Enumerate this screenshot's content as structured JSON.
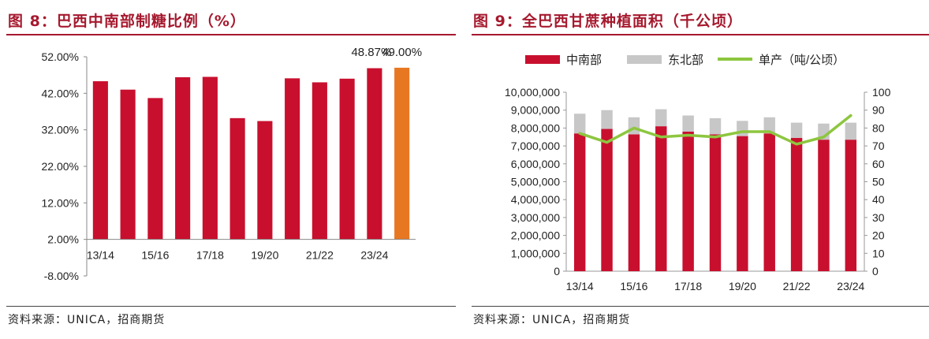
{
  "left": {
    "title": "图 8：巴西中南部制糖比例（%）",
    "source": "资料来源：UNICA，招商期货",
    "bar_color": "#c8102e",
    "highlight_color": "#e87722"
  },
  "right": {
    "title": "图 9：全巴西甘蔗种植面积（千公顷）",
    "source": "资料来源：UNICA，招商期货",
    "colors": {
      "south": "#c8102e",
      "north": "#c7c7c7",
      "yield": "#8dc63f"
    }
  },
  "chart_data": [
    {
      "type": "bar",
      "title": "巴西中南部制糖比例（%）",
      "categories": [
        "13/14",
        "14/15",
        "15/16",
        "16/17",
        "17/18",
        "18/19",
        "19/20",
        "20/21",
        "21/22",
        "22/23",
        "23/24",
        "24/25"
      ],
      "values": [
        45.3,
        43.0,
        40.7,
        46.4,
        46.5,
        35.2,
        34.4,
        46.1,
        45.0,
        46.0,
        48.87,
        49.0
      ],
      "highlight_index": 11,
      "data_labels": [
        {
          "index": 10,
          "text": "48.87%"
        },
        {
          "index": 11,
          "text": "49.00%"
        }
      ],
      "x_tick_labels": [
        "13/14",
        "15/16",
        "17/18",
        "19/20",
        "21/22",
        "23/24"
      ],
      "y_tick_labels": [
        "52.00%",
        "42.00%",
        "32.00%",
        "22.00%",
        "12.00%",
        "2.00%",
        "-8.00%"
      ],
      "ylim": [
        -8,
        52
      ],
      "y_ticks": [
        52,
        42,
        32,
        22,
        12,
        2,
        -8
      ],
      "xlabel": "",
      "ylabel": "",
      "legend": "none",
      "grid": false
    },
    {
      "type": "bar",
      "stacked": true,
      "title": "全巴西甘蔗种植面积（千公顷）",
      "categories": [
        "13/14",
        "14/15",
        "15/16",
        "16/17",
        "17/18",
        "18/19",
        "19/20",
        "20/21",
        "21/22",
        "22/23",
        "23/24"
      ],
      "x_tick_labels": [
        "13/14",
        "15/16",
        "17/18",
        "19/20",
        "21/22",
        "23/24"
      ],
      "series": [
        {
          "name": "中南部",
          "kind": "bar",
          "axis": "left",
          "values": [
            7700000,
            7950000,
            7650000,
            8100000,
            7800000,
            7650000,
            7550000,
            7700000,
            7450000,
            7350000,
            7350000
          ]
        },
        {
          "name": "东北部",
          "kind": "bar",
          "axis": "left",
          "values": [
            1100000,
            1050000,
            950000,
            950000,
            900000,
            900000,
            850000,
            900000,
            850000,
            900000,
            950000
          ]
        },
        {
          "name": "单产（吨/公顷）",
          "kind": "line",
          "axis": "right",
          "values": [
            77,
            72,
            80,
            75,
            76,
            75,
            78,
            78,
            71,
            75,
            87
          ]
        }
      ],
      "left_ylim": [
        0,
        10000000
      ],
      "left_ticks": [
        0,
        1000000,
        2000000,
        3000000,
        4000000,
        5000000,
        6000000,
        7000000,
        8000000,
        9000000,
        10000000
      ],
      "left_tick_labels": [
        "0",
        "1,000,000",
        "2,000,000",
        "3,000,000",
        "4,000,000",
        "5,000,000",
        "6,000,000",
        "7,000,000",
        "8,000,000",
        "9,000,000",
        "10,000,000"
      ],
      "right_ylim": [
        0,
        100
      ],
      "right_ticks": [
        0,
        10,
        20,
        30,
        40,
        50,
        60,
        70,
        80,
        90,
        100
      ],
      "right_tick_labels": [
        "0",
        "10",
        "20",
        "30",
        "40",
        "50",
        "60",
        "70",
        "80",
        "90",
        "100"
      ],
      "legend": "top",
      "grid": false
    }
  ]
}
